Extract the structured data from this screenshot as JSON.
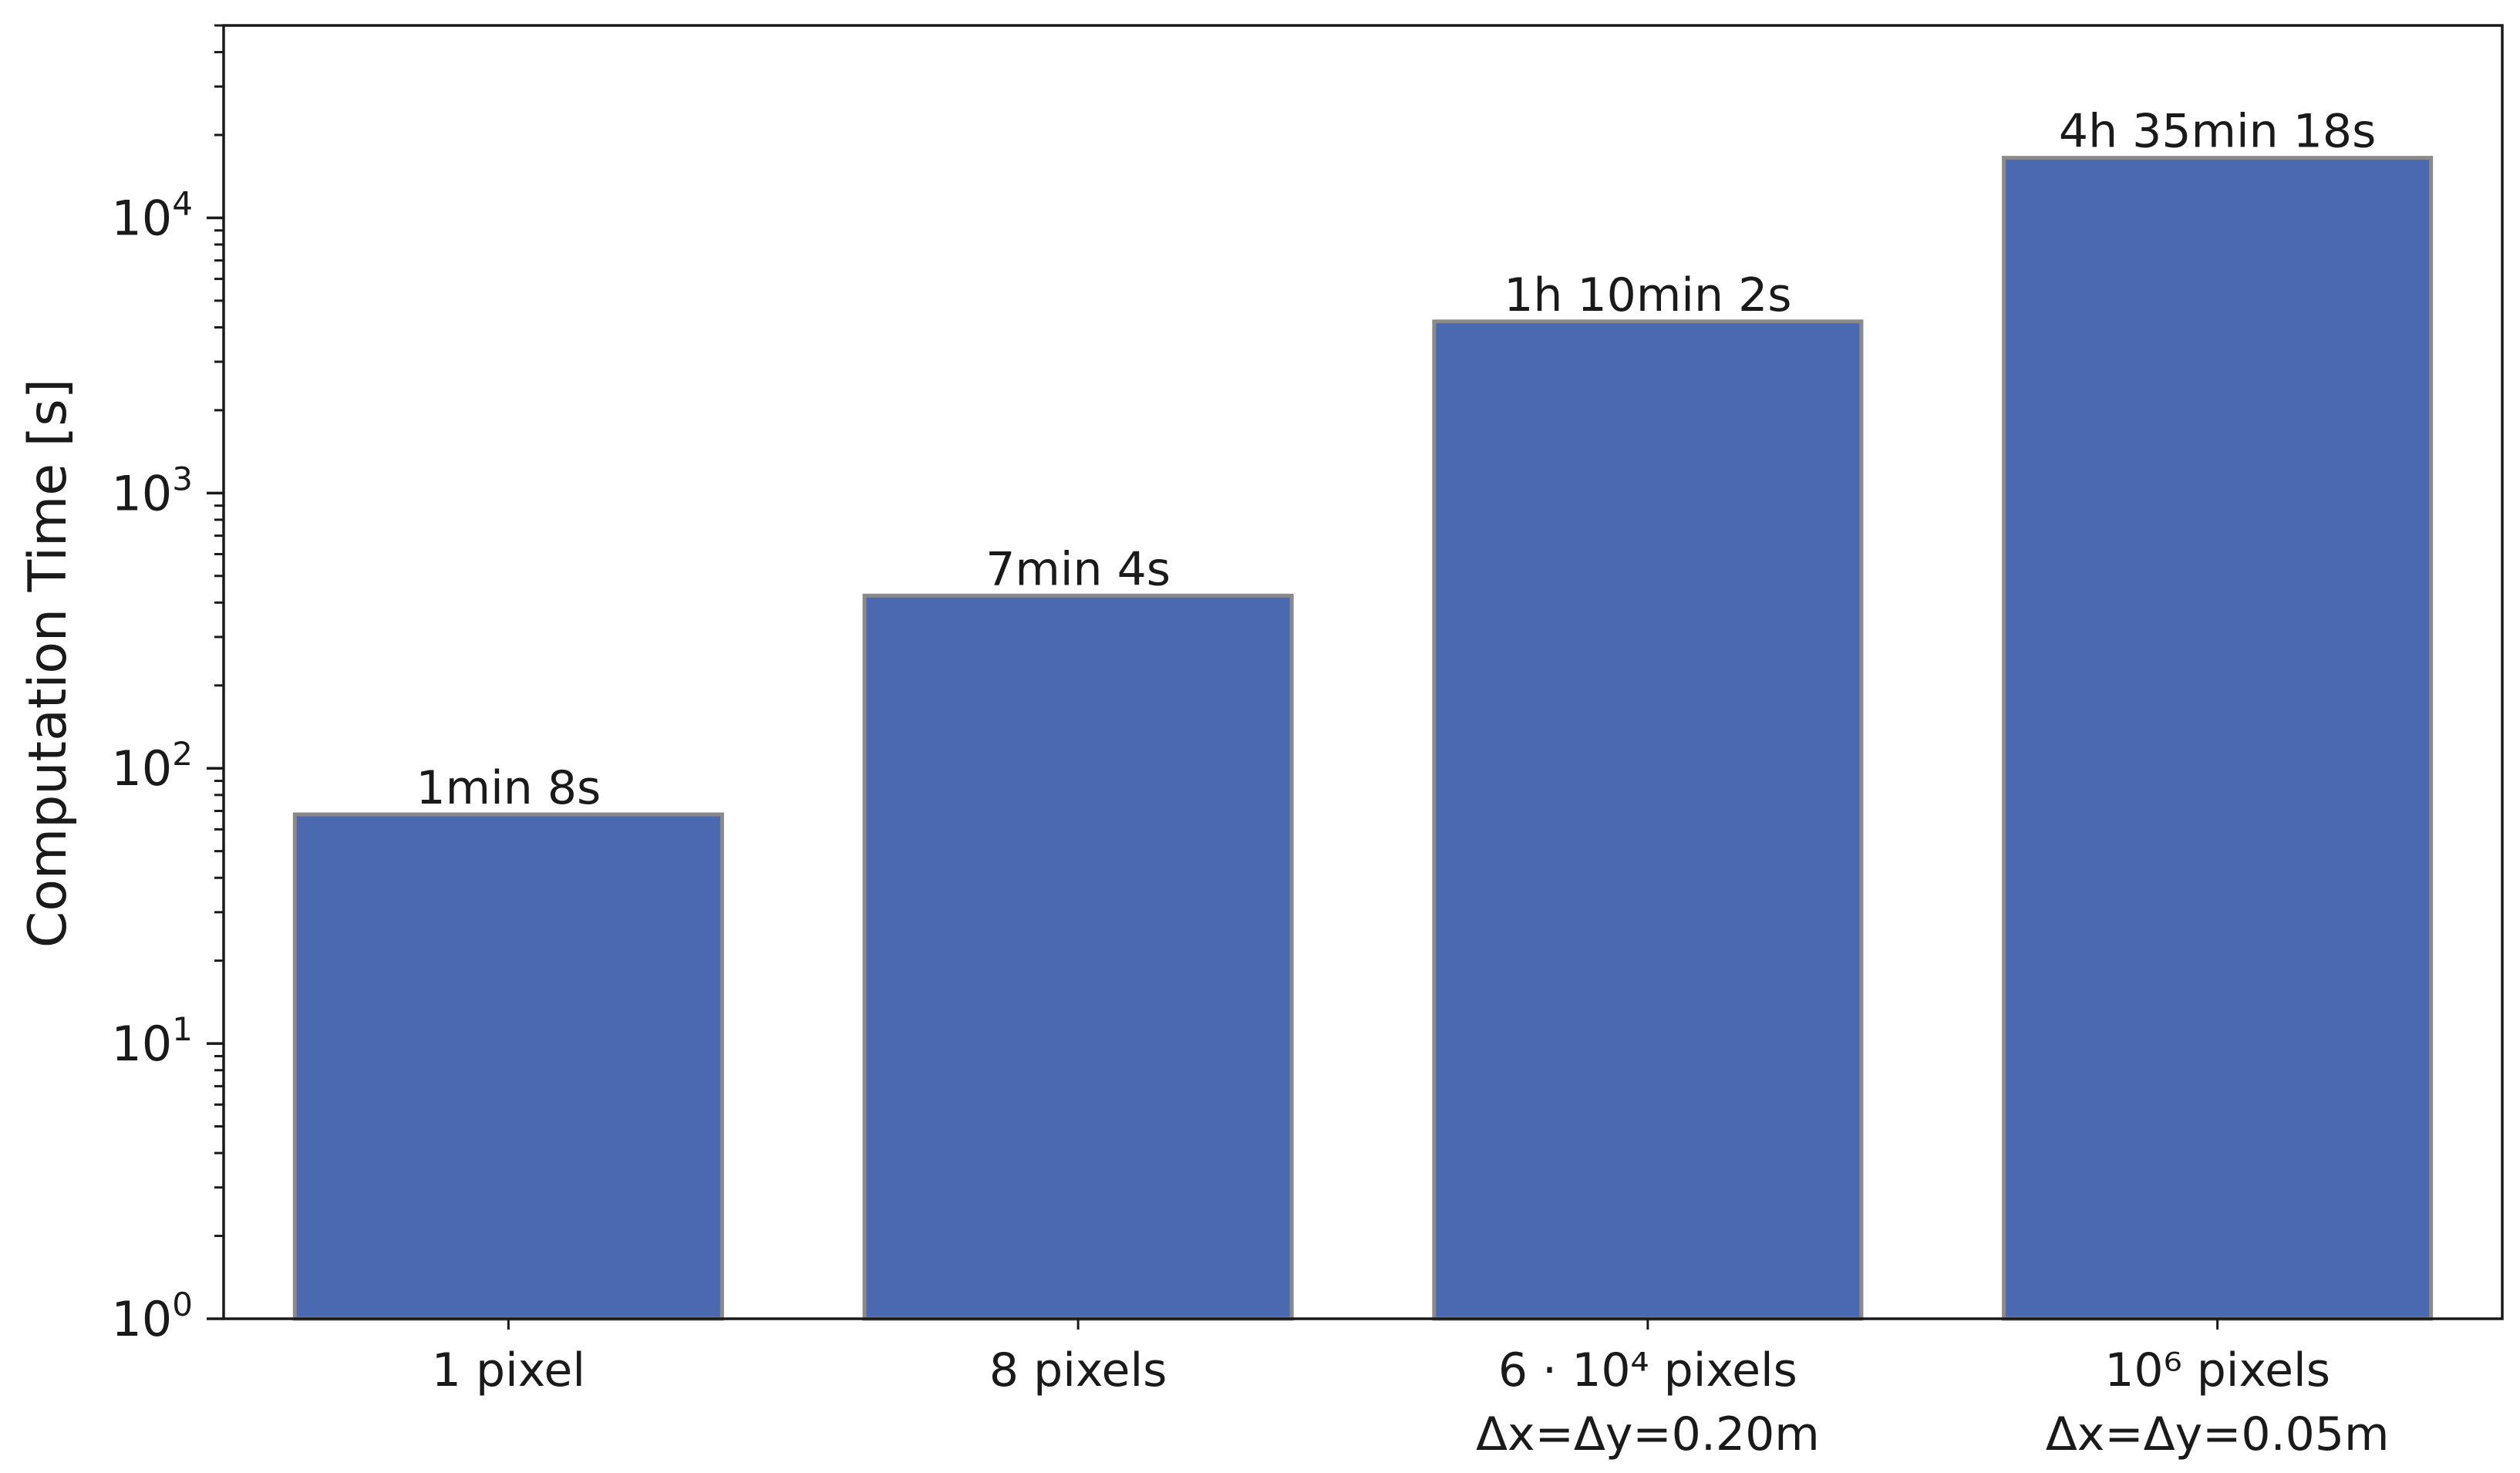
{
  "chart_data": {
    "type": "bar",
    "categories": [
      [
        "1 pixel"
      ],
      [
        "8 pixels"
      ],
      [
        "6 · 10⁴ pixels",
        "Δx=Δy=0.20m"
      ],
      [
        "10⁶ pixels",
        "Δx=Δy=0.05m"
      ]
    ],
    "values": [
      68,
      424,
      4202,
      16518
    ],
    "data_labels": [
      "1min 8s",
      "7min 4s",
      "1h 10min 2s",
      "4h 35min 18s"
    ],
    "ylabel": "Computation Time [s]",
    "xlabel": "",
    "title": "",
    "yscale": "log",
    "ylim": [
      1,
      50000
    ],
    "yticks": [
      {
        "value": 1,
        "base": "10",
        "exp": "0"
      },
      {
        "value": 10,
        "base": "10",
        "exp": "1"
      },
      {
        "value": 100,
        "base": "10",
        "exp": "2"
      },
      {
        "value": 1000,
        "base": "10",
        "exp": "3"
      },
      {
        "value": 10000,
        "base": "10",
        "exp": "4"
      }
    ],
    "grid": false,
    "bar_color": "#4a69b0",
    "bar_edge_color": "#8a8a8a"
  }
}
